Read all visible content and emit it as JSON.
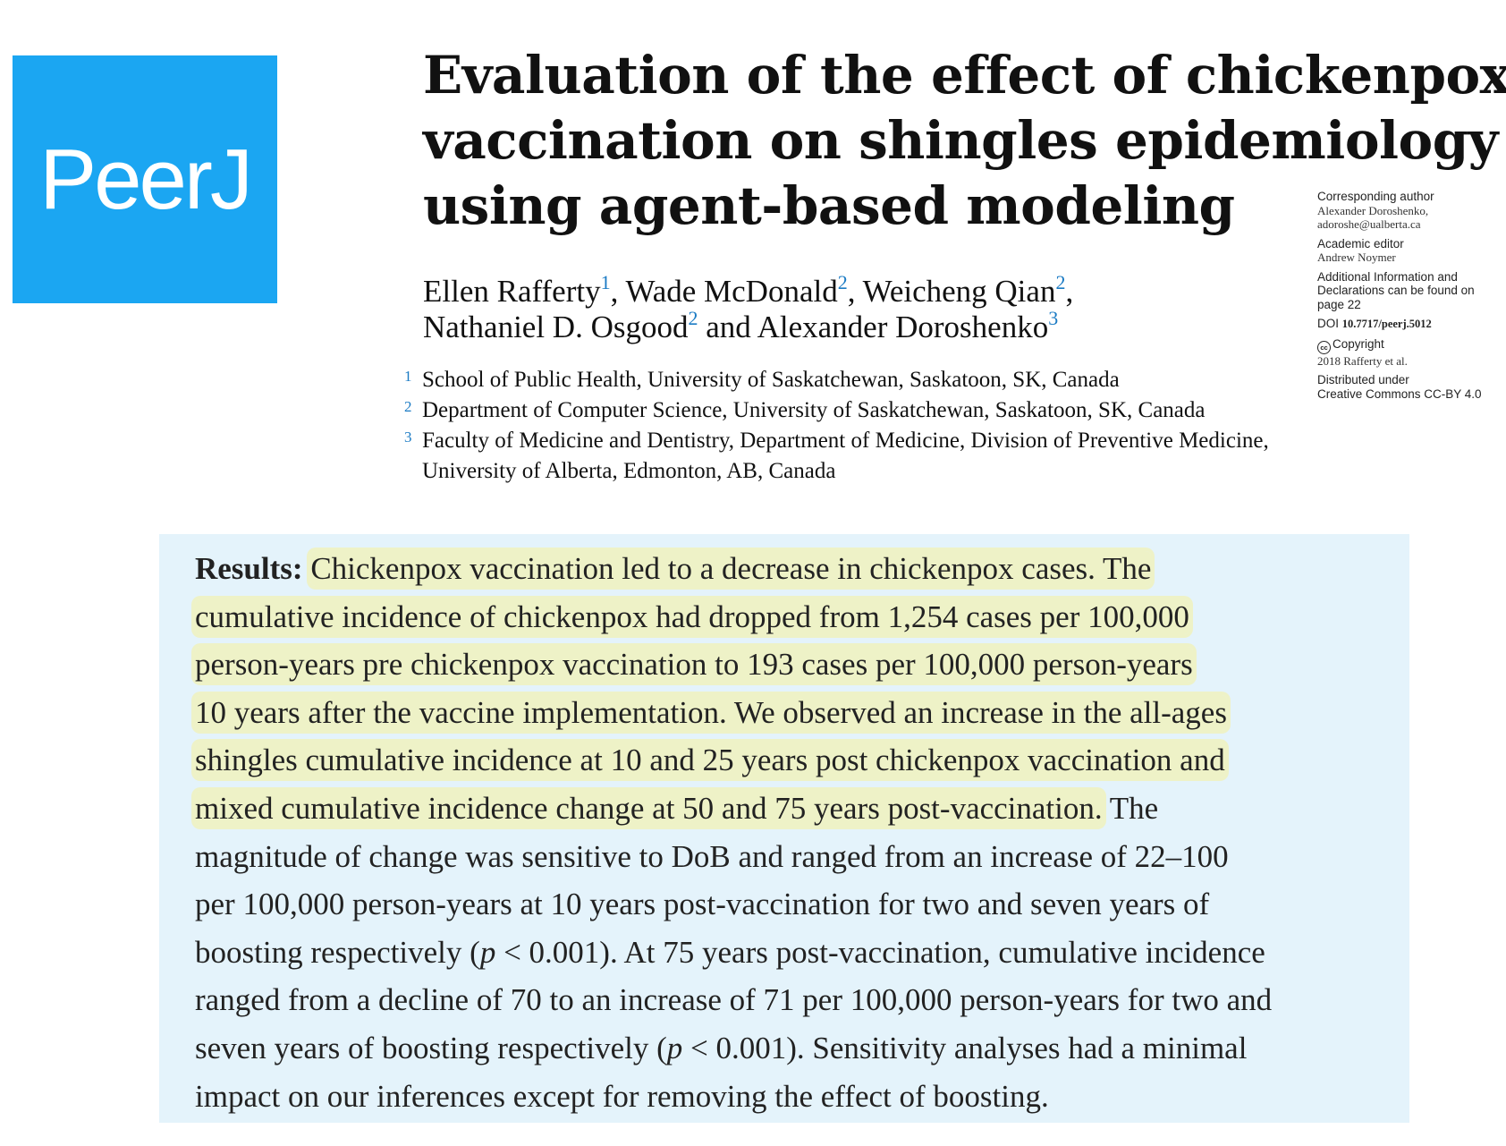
{
  "logo": {
    "text": "PeerJ",
    "color": "#1ba6f2"
  },
  "title_lines": [
    "Evaluation of the effect of chickenpox",
    "vaccination on shingles epidemiology",
    "using agent-based modeling"
  ],
  "authors": {
    "a1": "Ellen Rafferty",
    "s1": "1",
    "a2": "Wade McDonald",
    "s2": "2",
    "a3": "Weicheng Qian",
    "s3": "2",
    "a4": "Nathaniel D. Osgood",
    "s4": "2",
    "a5": "Alexander Doroshenko",
    "s5": "3"
  },
  "affiliations": [
    {
      "num": "1",
      "lines": [
        "School of Public Health, University of Saskatchewan, Saskatoon, SK, Canada"
      ]
    },
    {
      "num": "2",
      "lines": [
        "Department of Computer Science, University of Saskatchewan, Saskatoon, SK, Canada"
      ]
    },
    {
      "num": "3",
      "lines": [
        "Faculty of Medicine and Dentistry, Department of Medicine, Division of Preventive Medicine,",
        "University of Alberta, Edmonton, AB, Canada"
      ]
    }
  ],
  "sidebar": {
    "corr_label": "Corresponding author",
    "corr_name": "Alexander Doroshenko,",
    "corr_email": "adoroshe@ualberta.ca",
    "editor_label": "Academic editor",
    "editor_name": "Andrew Noymer",
    "additional_1": "Additional Information and",
    "additional_2": "Declarations can be found on",
    "additional_3": "page 22",
    "doi_label": "DOI",
    "doi_value": "10.7717/peerj.5012",
    "cc_icon": "cc",
    "copyright_label": "Copyright",
    "copyright_value": "2018 Rafferty et al.",
    "dist_1": "Distributed under",
    "dist_2": "Creative Commons CC-BY 4.0"
  },
  "abstract": {
    "label": "Results:",
    "l1": "Chickenpox vaccination led to a decrease in chickenpox cases. The",
    "l2": "cumulative incidence of chickenpox had dropped from 1,254 cases per 100,000",
    "l3": "person-years pre chickenpox vaccination to 193 cases per 100,000 person-years",
    "l4": "10 years after the vaccine implementation. We observed an increase in the all-ages",
    "l5": "shingles cumulative incidence at 10 and 25 years post chickenpox vaccination and",
    "l6a": "mixed cumulative incidence change at 50 and 75 years post-vaccination.",
    "l6b": " The",
    "l7": "magnitude of change was sensitive to DoB and ranged from an increase of 22–100",
    "l8": "per 100,000 person-years at 10 years post-vaccination for two and seven years of",
    "l9a": "boosting respectively (",
    "p1": "p",
    "l9b": " < 0.001). At 75 years post-vaccination, cumulative incidence",
    "l10": "ranged from a decline of 70 to an increase of 71 per 100,000 person-years for two and",
    "l11a": "seven years of boosting respectively (",
    "p2": "p",
    "l11b": " < 0.001). Sensitivity analyses had a minimal",
    "l12": "impact on our inferences except for removing the effect of boosting.",
    "highlight_color": "#eef2c7",
    "panel_color": "#e4f3fb"
  }
}
